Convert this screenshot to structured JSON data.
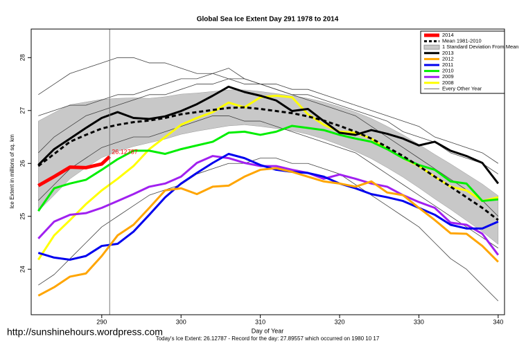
{
  "chart_data": {
    "type": "line",
    "title": "Global Sea Ice Extent Day 291 1978 to 2014",
    "x_label": "Day of Year",
    "y_label": "Ice Extent in millions of sq. km",
    "footer": "Today's Ice Extent: 26.12787  - Record for the day: 27.89557 which occurred on 1980 10 17",
    "watermark": "http://sunshinehours.wordpress.com",
    "annotation": "26.12787",
    "marker_x": 291,
    "xlim": [
      281.1,
      340.8
    ],
    "ylim": [
      23.14,
      28.54
    ],
    "xticks": [
      290,
      300,
      310,
      320,
      330,
      340
    ],
    "yticks": [
      24,
      25,
      26,
      27,
      28
    ],
    "legend": "top-right",
    "x": [
      282,
      284,
      286,
      288,
      290,
      292,
      294,
      296,
      298,
      300,
      302,
      304,
      306,
      308,
      310,
      312,
      314,
      316,
      318,
      320,
      322,
      324,
      326,
      328,
      330,
      332,
      334,
      336,
      338,
      340
    ],
    "series": [
      {
        "name": "2014",
        "color": "#ff0000",
        "width": 5,
        "x": [
          282,
          284,
          286,
          288,
          290,
          291
        ],
        "values": [
          25.58,
          25.75,
          25.93,
          25.92,
          25.99,
          26.13
        ]
      },
      {
        "name": "Mean 1981-2010",
        "color": "#000000",
        "width": 3,
        "style": "dashed",
        "values": [
          25.95,
          26.18,
          26.41,
          26.54,
          26.66,
          26.73,
          26.78,
          26.81,
          26.86,
          26.93,
          26.97,
          27.01,
          27.05,
          27.06,
          27.03,
          26.99,
          26.95,
          26.89,
          26.81,
          26.71,
          26.6,
          26.47,
          26.31,
          26.14,
          25.95,
          25.75,
          25.56,
          25.36,
          25.16,
          24.93
        ]
      },
      {
        "name": "1 Standard Deviation From Mean",
        "color": "#c8c8c8",
        "style": "band",
        "upper": [
          26.8,
          26.96,
          27.11,
          27.16,
          27.21,
          27.23,
          27.24,
          27.23,
          27.26,
          27.31,
          27.33,
          27.36,
          27.39,
          27.39,
          27.36,
          27.32,
          27.28,
          27.23,
          27.16,
          27.07,
          26.97,
          26.85,
          26.7,
          26.54,
          26.36,
          26.17,
          25.99,
          25.8,
          25.61,
          25.39
        ],
        "lower": [
          25.1,
          25.4,
          25.71,
          25.92,
          26.11,
          26.23,
          26.32,
          26.39,
          26.46,
          26.55,
          26.61,
          26.66,
          26.71,
          26.73,
          26.7,
          26.66,
          26.62,
          26.55,
          26.46,
          26.35,
          26.23,
          26.09,
          25.92,
          25.74,
          25.54,
          25.33,
          25.13,
          24.92,
          24.71,
          24.47
        ]
      },
      {
        "name": "2013",
        "color": "#000000",
        "width": 3,
        "values": [
          25.97,
          26.27,
          26.47,
          26.67,
          26.86,
          26.97,
          26.86,
          26.84,
          26.89,
          26.99,
          27.12,
          27.28,
          27.45,
          27.35,
          27.28,
          27.19,
          26.99,
          27.03,
          26.8,
          26.58,
          26.54,
          26.63,
          26.56,
          26.47,
          26.34,
          26.41,
          26.24,
          26.14,
          26.01,
          25.62
        ]
      },
      {
        "name": "2012",
        "color": "#ffa500",
        "width": 3,
        "values": [
          23.5,
          23.66,
          23.86,
          23.92,
          24.25,
          24.64,
          24.84,
          25.16,
          25.49,
          25.53,
          25.42,
          25.56,
          25.58,
          25.75,
          25.88,
          25.91,
          25.84,
          25.75,
          25.66,
          25.62,
          25.56,
          25.66,
          25.45,
          25.4,
          25.16,
          24.93,
          24.68,
          24.67,
          24.44,
          24.14
        ]
      },
      {
        "name": "2011",
        "color": "#0000ee",
        "width": 3,
        "values": [
          24.31,
          24.22,
          24.18,
          24.25,
          24.44,
          24.48,
          24.71,
          25.03,
          25.36,
          25.62,
          25.82,
          26.01,
          26.18,
          26.1,
          25.97,
          25.88,
          25.84,
          25.82,
          25.75,
          25.62,
          25.53,
          25.42,
          25.36,
          25.29,
          25.16,
          25.03,
          24.84,
          24.77,
          24.77,
          24.9
        ]
      },
      {
        "name": "2010",
        "color": "#00ee00",
        "width": 3,
        "values": [
          25.1,
          25.53,
          25.62,
          25.69,
          25.88,
          26.08,
          26.24,
          26.24,
          26.18,
          26.27,
          26.34,
          26.41,
          26.58,
          26.6,
          26.54,
          26.6,
          26.71,
          26.67,
          26.63,
          26.54,
          26.47,
          26.41,
          26.27,
          26.1,
          25.97,
          25.88,
          25.66,
          25.62,
          25.29,
          25.32
        ]
      },
      {
        "name": "2009",
        "color": "#a020f0",
        "width": 3,
        "values": [
          24.58,
          24.9,
          25.03,
          25.06,
          25.16,
          25.29,
          25.42,
          25.56,
          25.62,
          25.75,
          26.01,
          26.14,
          26.1,
          26.01,
          25.95,
          25.95,
          25.88,
          25.82,
          25.71,
          25.79,
          25.71,
          25.62,
          25.56,
          25.4,
          25.27,
          25.16,
          24.88,
          24.84,
          24.67,
          24.27
        ]
      },
      {
        "name": "2008",
        "color": "#ffff00",
        "width": 3,
        "values": [
          24.18,
          24.64,
          24.93,
          25.23,
          25.49,
          25.71,
          25.95,
          26.27,
          26.5,
          26.73,
          26.86,
          26.97,
          27.15,
          27.06,
          27.25,
          27.28,
          27.25,
          26.93,
          26.73,
          26.6,
          26.58,
          26.47,
          26.27,
          26.1,
          25.95,
          25.75,
          25.56,
          25.49,
          25.29,
          25.36
        ]
      },
      {
        "name": "Every Other Year",
        "color": "#404040",
        "width": 0.8,
        "style": "thin",
        "values": [
          [
            27.3,
            27.5,
            27.7,
            27.8,
            27.9,
            28.0,
            28.0,
            27.9,
            27.9,
            27.8,
            27.7,
            27.7,
            27.8,
            27.6,
            27.5,
            27.5,
            27.4,
            27.4,
            27.3,
            27.2,
            27.1,
            27.0,
            26.9,
            26.8,
            26.7,
            26.5,
            26.4,
            26.3,
            26.2,
            26.0
          ],
          [
            26.9,
            27.0,
            27.1,
            27.1,
            27.2,
            27.3,
            27.3,
            27.4,
            27.5,
            27.6,
            27.6,
            27.7,
            27.6,
            27.6,
            27.5,
            27.4,
            27.3,
            27.3,
            27.2,
            27.1,
            27.0,
            26.9,
            26.8,
            26.6,
            26.5,
            26.4,
            26.2,
            26.1,
            26.0,
            25.8
          ],
          [
            25.3,
            25.6,
            25.9,
            26.1,
            26.3,
            26.4,
            26.5,
            26.5,
            26.6,
            26.7,
            26.8,
            26.9,
            26.9,
            26.8,
            26.8,
            26.7,
            26.6,
            26.5,
            26.4,
            26.3,
            26.2,
            26.0,
            25.8,
            25.6,
            25.4,
            25.2,
            25.0,
            24.8,
            24.6,
            24.4
          ],
          [
            23.7,
            23.9,
            24.2,
            24.5,
            24.8,
            25.0,
            25.2,
            25.4,
            25.5,
            25.6,
            25.8,
            25.9,
            26.0,
            26.0,
            26.1,
            26.1,
            26.0,
            26.0,
            25.9,
            25.8,
            25.6,
            25.4,
            25.2,
            25.0,
            24.8,
            24.5,
            24.2,
            24.0,
            23.7,
            23.4
          ],
          [
            26.2,
            26.5,
            26.7,
            26.9,
            27.0,
            27.1,
            27.2,
            27.3,
            27.3,
            27.4,
            27.5,
            27.5,
            27.6,
            27.5,
            27.5,
            27.4,
            27.3,
            27.2,
            27.1,
            27.0,
            26.9,
            26.7,
            26.5,
            26.3,
            26.1,
            25.9,
            25.7,
            25.5,
            25.3,
            25.0
          ]
        ]
      }
    ]
  }
}
